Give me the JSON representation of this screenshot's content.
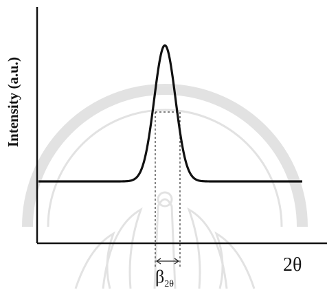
{
  "figure": {
    "y_axis_label": "Intensity (a.u.)",
    "x_axis_label": "2θ",
    "width_label": {
      "symbol": "β",
      "subscript": "2θ"
    }
  },
  "curve": {
    "shape": "gaussian-peak-on-flat-baseline",
    "line_color": "#111111"
  },
  "watermark": {
    "description": "faint university seal",
    "color": "#d9d9d9"
  }
}
